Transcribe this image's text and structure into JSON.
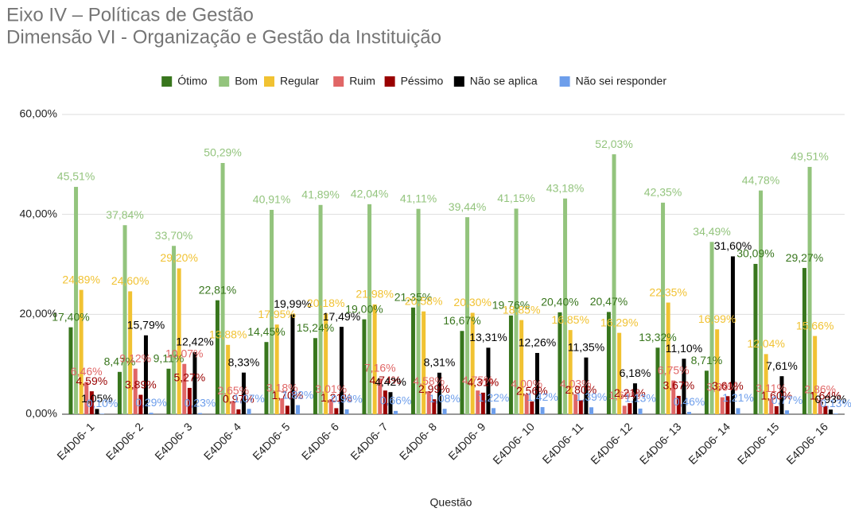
{
  "chart_data": {
    "type": "bar",
    "title": "Eixo IV – Políticas de Gestão",
    "subtitle": "Dimensão VI - Organização e Gestão da Instituição",
    "x_label": "Questão",
    "categories": [
      "E4D06- 1",
      "E4D06- 2",
      "E4D06- 3",
      "E4D06- 4",
      "E4D06- 5",
      "E4D06- 6",
      "E4D06- 7",
      "E4D06- 8",
      "E4D06- 9",
      "E4D06- 10",
      "E4D06- 11",
      "E4D06- 12",
      "E4D06- 13",
      "E4D06- 14",
      "E4D06- 15",
      "E4D06- 16"
    ],
    "ylim": [
      0,
      60
    ],
    "yticks": [
      {
        "value": 0,
        "label": "0,00%"
      },
      {
        "value": 20,
        "label": "20,00%"
      },
      {
        "value": 40,
        "label": "40,00%"
      },
      {
        "value": 60,
        "label": "60,00%"
      }
    ],
    "grid": true,
    "legend": "top",
    "series": [
      {
        "name": "Ótimo",
        "color": "#38761d",
        "values": [
          17.4,
          8.47,
          9.11,
          22.81,
          14.45,
          15.24,
          19.0,
          21.35,
          16.67,
          19.76,
          20.4,
          20.47,
          13.32,
          8.71,
          30.09,
          29.27
        ],
        "value_labels": [
          "17,40%",
          "8,47%",
          "9,11%",
          "22,81%",
          "14,45%",
          "15,24%",
          "19,00%",
          "21,35%",
          "16,67%",
          "19,76%",
          "20,40%",
          "20,47%",
          "13,32%",
          "8,71%",
          "30,09%",
          "29,27%"
        ]
      },
      {
        "name": "Bom",
        "color": "#93c47d",
        "values": [
          45.51,
          37.84,
          33.7,
          50.29,
          40.91,
          41.89,
          42.04,
          41.11,
          39.44,
          41.15,
          43.18,
          52.03,
          42.35,
          34.49,
          44.78,
          49.51
        ],
        "value_labels": [
          "45,51%",
          "37,84%",
          "33,70%",
          "50,29%",
          "40,91%",
          "41,89%",
          "42,04%",
          "41,11%",
          "39,44%",
          "41,15%",
          "43,18%",
          "52,03%",
          "42,35%",
          "34,49%",
          "44,78%",
          "49,51%"
        ]
      },
      {
        "name": "Regular",
        "color": "#f1c232",
        "values": [
          24.89,
          24.6,
          29.2,
          13.88,
          17.95,
          20.18,
          21.98,
          20.58,
          20.3,
          18.85,
          16.85,
          16.29,
          22.35,
          16.99,
          12.04,
          15.66
        ],
        "value_labels": [
          "24,89%",
          "24,60%",
          "29,20%",
          "13,88%",
          "17,95%",
          "20,18%",
          "21,98%",
          "20,58%",
          "20,30%",
          "18,85%",
          "16,85%",
          "16,29%",
          "22,35%",
          "16,99%",
          "12,04%",
          "15,66%"
        ]
      },
      {
        "name": "Ruim",
        "color": "#e06666",
        "values": [
          6.46,
          9.12,
          10.07,
          2.65,
          3.18,
          3.01,
          7.16,
          4.58,
          4.75,
          4.0,
          4.03,
          1.69,
          6.75,
          3.39,
          3.11,
          2.86
        ],
        "value_labels": [
          "6,46%",
          "9,12%",
          "10,07%",
          "2,65%",
          "3,18%",
          "3,01%",
          "7,16%",
          "4,58%",
          "4,75%",
          "4,00%",
          "4,03%",
          "1,69%",
          "6,75%",
          "3,39%",
          "3,11%",
          "2,86%"
        ]
      },
      {
        "name": "Péssimo",
        "color": "#990000",
        "values": [
          4.59,
          3.89,
          5.27,
          0.97,
          1.7,
          1.21,
          4.74,
          2.99,
          4.31,
          2.56,
          2.8,
          2.21,
          3.67,
          3.61,
          1.6,
          1.64
        ],
        "value_labels": [
          "4,59%",
          "3,89%",
          "5,27%",
          "0,97%",
          "1,70%",
          "1,21%",
          "4,74%",
          "2,99%",
          "4,31%",
          "2,56%",
          "2,80%",
          "2,21%",
          "3,67%",
          "3,61%",
          "1,60%",
          "1,64%"
        ]
      },
      {
        "name": "Não se aplica",
        "color": "#000000",
        "values": [
          1.05,
          15.79,
          12.42,
          8.33,
          19.99,
          17.49,
          4.42,
          8.31,
          13.31,
          12.26,
          11.35,
          6.18,
          11.1,
          31.6,
          7.61,
          0.93
        ],
        "value_labels": [
          "1,05%",
          "15,79%",
          "12,42%",
          "8,33%",
          "19,99%",
          "17,49%",
          "4,42%",
          "8,31%",
          "13,31%",
          "12,26%",
          "11,35%",
          "6,18%",
          "11,10%",
          "31,60%",
          "7,61%",
          "0,93%"
        ]
      },
      {
        "name": "Não sei responder",
        "color": "#6d9eeb",
        "values": [
          0.1,
          0.29,
          0.23,
          1.07,
          1.82,
          0.98,
          0.66,
          1.08,
          1.22,
          1.42,
          1.39,
          1.13,
          0.46,
          1.21,
          0.77,
          0.13
        ],
        "value_labels": [
          "0,10%",
          "0,29%",
          "0,23%",
          "1,07%",
          "1,82%",
          "0,98%",
          "0,66%",
          "1,08%",
          "1,22%",
          "1,42%",
          "1,39%",
          "1,13%",
          "0,46%",
          "1,21%",
          "0,77%",
          "0,13%"
        ]
      }
    ]
  }
}
